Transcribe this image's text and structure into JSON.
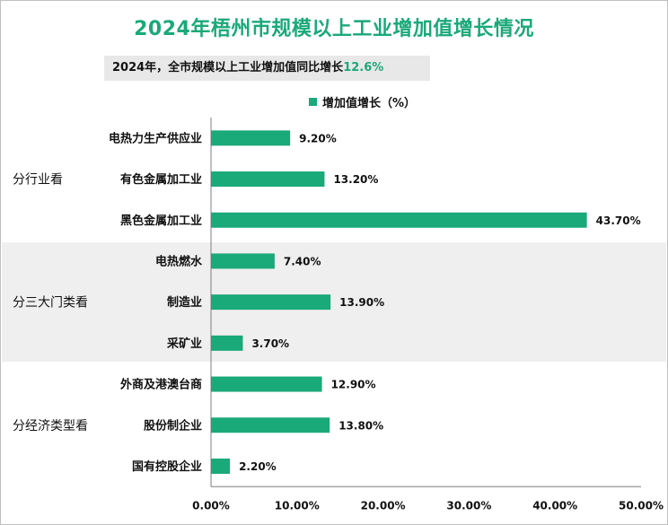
{
  "title": "2024年梧州市规模以上工业增加值增长情况",
  "subtitle": {
    "text": "2024年，全市规模以上工业增加值同比增长",
    "highlight": "12.6%"
  },
  "colors": {
    "bar": "#1aa978",
    "title": "#1aa978",
    "band": "#efefef",
    "axis": "#7f7f7f",
    "text": "#111111"
  },
  "chart_data": {
    "type": "bar",
    "orientation": "horizontal",
    "legend": {
      "label": "增加值增长（%）",
      "placement": "top-center"
    },
    "xlim": [
      0,
      50
    ],
    "x_ticks": [
      "0.00%",
      "10.00%",
      "20.00%",
      "30.00%",
      "40.00%",
      "50.00%"
    ],
    "grid": false,
    "groups": [
      {
        "label": "分行业看",
        "shaded": false,
        "categories": [
          "电热力生产供应业",
          "有色金属加工业",
          "黑色金属加工业"
        ],
        "values": [
          9.2,
          13.2,
          43.7
        ],
        "value_labels": [
          "9.20%",
          "13.20%",
          "43.70%"
        ]
      },
      {
        "label": "分三大门类看",
        "shaded": true,
        "categories": [
          "电热燃水",
          "制造业",
          "采矿业"
        ],
        "values": [
          7.4,
          13.9,
          3.7
        ],
        "value_labels": [
          "7.40%",
          "13.90%",
          "3.70%"
        ]
      },
      {
        "label": "分经济类型看",
        "shaded": false,
        "categories": [
          "外商及港澳台商",
          "股份制企业",
          "国有控股企业"
        ],
        "values": [
          12.9,
          13.8,
          2.2
        ],
        "value_labels": [
          "12.90%",
          "13.80%",
          "2.20%"
        ]
      }
    ]
  }
}
